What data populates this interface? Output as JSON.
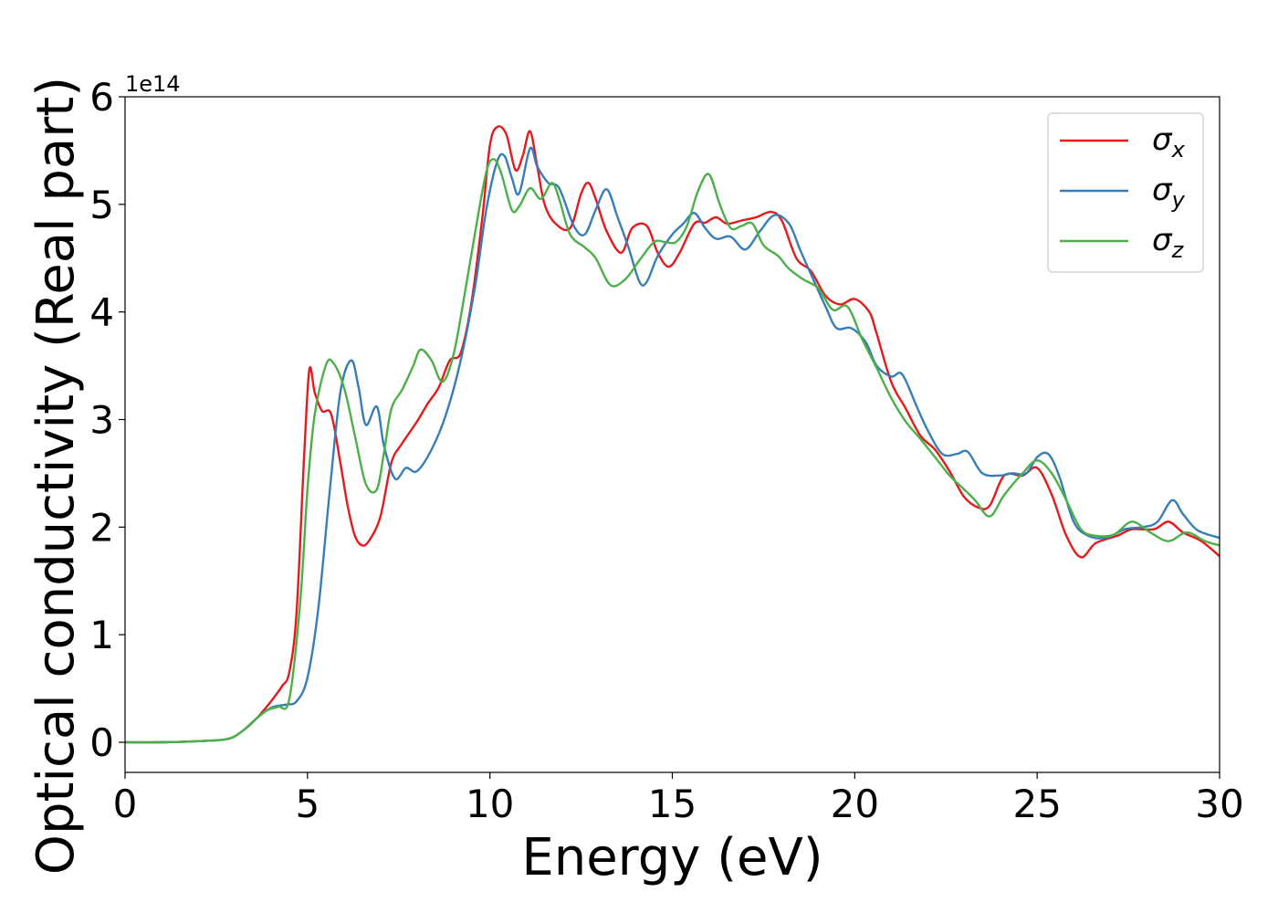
{
  "chart_data": {
    "type": "line",
    "title": "",
    "xlabel": "Energy (eV)",
    "ylabel": "Optical conductivity (Real part)",
    "y_offset_label": "1e14",
    "y_scale": 100000000000000.0,
    "xlim": [
      0,
      30
    ],
    "ylim": [
      -0.28,
      6.0
    ],
    "x_ticks": [
      0,
      5,
      10,
      15,
      20,
      25,
      30
    ],
    "y_ticks": [
      0,
      1,
      2,
      3,
      4,
      5,
      6
    ],
    "grid": false,
    "legend_position": "top-right",
    "series": [
      {
        "name": "σ",
        "subscript": "x",
        "color": "#e41a1c",
        "points": [
          [
            0,
            0
          ],
          [
            1,
            0
          ],
          [
            2,
            0.01
          ],
          [
            2.8,
            0.03
          ],
          [
            3.2,
            0.1
          ],
          [
            3.6,
            0.22
          ],
          [
            4.0,
            0.38
          ],
          [
            4.3,
            0.52
          ],
          [
            4.5,
            0.65
          ],
          [
            4.7,
            1.2
          ],
          [
            4.9,
            2.6
          ],
          [
            5.05,
            3.46
          ],
          [
            5.2,
            3.25
          ],
          [
            5.4,
            3.08
          ],
          [
            5.65,
            3.05
          ],
          [
            5.9,
            2.6
          ],
          [
            6.1,
            2.2
          ],
          [
            6.3,
            1.92
          ],
          [
            6.5,
            1.83
          ],
          [
            6.7,
            1.88
          ],
          [
            7.0,
            2.1
          ],
          [
            7.3,
            2.6
          ],
          [
            7.6,
            2.78
          ],
          [
            8.0,
            2.98
          ],
          [
            8.3,
            3.15
          ],
          [
            8.6,
            3.3
          ],
          [
            8.9,
            3.55
          ],
          [
            9.2,
            3.62
          ],
          [
            9.5,
            4.1
          ],
          [
            9.8,
            4.9
          ],
          [
            10.0,
            5.55
          ],
          [
            10.2,
            5.72
          ],
          [
            10.45,
            5.65
          ],
          [
            10.7,
            5.32
          ],
          [
            10.9,
            5.45
          ],
          [
            11.1,
            5.68
          ],
          [
            11.3,
            5.35
          ],
          [
            11.5,
            5.0
          ],
          [
            11.8,
            4.82
          ],
          [
            12.2,
            4.78
          ],
          [
            12.5,
            5.1
          ],
          [
            12.7,
            5.2
          ],
          [
            12.9,
            5.05
          ],
          [
            13.2,
            4.75
          ],
          [
            13.6,
            4.55
          ],
          [
            13.9,
            4.78
          ],
          [
            14.3,
            4.8
          ],
          [
            14.6,
            4.55
          ],
          [
            14.9,
            4.42
          ],
          [
            15.2,
            4.55
          ],
          [
            15.6,
            4.82
          ],
          [
            15.9,
            4.83
          ],
          [
            16.2,
            4.88
          ],
          [
            16.5,
            4.82
          ],
          [
            16.9,
            4.85
          ],
          [
            17.3,
            4.88
          ],
          [
            17.7,
            4.93
          ],
          [
            18.0,
            4.85
          ],
          [
            18.4,
            4.5
          ],
          [
            18.8,
            4.38
          ],
          [
            19.2,
            4.15
          ],
          [
            19.6,
            4.07
          ],
          [
            20.0,
            4.12
          ],
          [
            20.4,
            4.0
          ],
          [
            20.6,
            3.8
          ],
          [
            21.0,
            3.35
          ],
          [
            21.4,
            3.1
          ],
          [
            21.8,
            2.85
          ],
          [
            22.2,
            2.72
          ],
          [
            22.6,
            2.52
          ],
          [
            23.0,
            2.28
          ],
          [
            23.4,
            2.18
          ],
          [
            23.7,
            2.2
          ],
          [
            24.1,
            2.48
          ],
          [
            24.6,
            2.48
          ],
          [
            25.0,
            2.55
          ],
          [
            25.4,
            2.3
          ],
          [
            25.8,
            1.92
          ],
          [
            26.2,
            1.72
          ],
          [
            26.6,
            1.85
          ],
          [
            27.2,
            1.92
          ],
          [
            27.6,
            1.98
          ],
          [
            28.2,
            1.98
          ],
          [
            28.6,
            2.05
          ],
          [
            29.0,
            1.95
          ],
          [
            29.5,
            1.87
          ],
          [
            30,
            1.73
          ]
        ]
      },
      {
        "name": "σ",
        "subscript": "y",
        "color": "#377eb8",
        "points": [
          [
            0,
            0
          ],
          [
            1,
            0
          ],
          [
            2,
            0.01
          ],
          [
            2.8,
            0.03
          ],
          [
            3.2,
            0.1
          ],
          [
            3.6,
            0.22
          ],
          [
            4.0,
            0.32
          ],
          [
            4.4,
            0.35
          ],
          [
            4.7,
            0.38
          ],
          [
            5.0,
            0.6
          ],
          [
            5.3,
            1.25
          ],
          [
            5.6,
            2.3
          ],
          [
            5.9,
            3.25
          ],
          [
            6.2,
            3.55
          ],
          [
            6.4,
            3.3
          ],
          [
            6.6,
            2.95
          ],
          [
            6.9,
            3.12
          ],
          [
            7.1,
            2.75
          ],
          [
            7.4,
            2.45
          ],
          [
            7.7,
            2.55
          ],
          [
            8.0,
            2.52
          ],
          [
            8.4,
            2.72
          ],
          [
            8.8,
            3.05
          ],
          [
            9.2,
            3.55
          ],
          [
            9.6,
            4.25
          ],
          [
            9.9,
            4.95
          ],
          [
            10.2,
            5.4
          ],
          [
            10.4,
            5.45
          ],
          [
            10.6,
            5.25
          ],
          [
            10.8,
            5.1
          ],
          [
            11.1,
            5.52
          ],
          [
            11.3,
            5.35
          ],
          [
            11.6,
            5.2
          ],
          [
            11.9,
            5.15
          ],
          [
            12.3,
            4.8
          ],
          [
            12.6,
            4.72
          ],
          [
            12.9,
            4.95
          ],
          [
            13.2,
            5.14
          ],
          [
            13.5,
            4.88
          ],
          [
            13.8,
            4.6
          ],
          [
            14.1,
            4.28
          ],
          [
            14.3,
            4.28
          ],
          [
            14.6,
            4.52
          ],
          [
            15.0,
            4.72
          ],
          [
            15.3,
            4.82
          ],
          [
            15.6,
            4.92
          ],
          [
            15.9,
            4.78
          ],
          [
            16.2,
            4.68
          ],
          [
            16.6,
            4.7
          ],
          [
            17.0,
            4.58
          ],
          [
            17.4,
            4.75
          ],
          [
            17.8,
            4.9
          ],
          [
            18.2,
            4.82
          ],
          [
            18.5,
            4.58
          ],
          [
            18.8,
            4.35
          ],
          [
            19.2,
            4.05
          ],
          [
            19.5,
            3.85
          ],
          [
            19.9,
            3.85
          ],
          [
            20.3,
            3.72
          ],
          [
            20.6,
            3.5
          ],
          [
            21.0,
            3.4
          ],
          [
            21.3,
            3.42
          ],
          [
            21.7,
            3.12
          ],
          [
            22.0,
            2.9
          ],
          [
            22.4,
            2.68
          ],
          [
            22.8,
            2.68
          ],
          [
            23.1,
            2.7
          ],
          [
            23.5,
            2.5
          ],
          [
            24.0,
            2.48
          ],
          [
            24.3,
            2.5
          ],
          [
            24.7,
            2.5
          ],
          [
            25.0,
            2.65
          ],
          [
            25.3,
            2.68
          ],
          [
            25.6,
            2.48
          ],
          [
            26.0,
            2.05
          ],
          [
            26.4,
            1.92
          ],
          [
            26.9,
            1.9
          ],
          [
            27.4,
            1.98
          ],
          [
            27.9,
            2.0
          ],
          [
            28.3,
            2.05
          ],
          [
            28.7,
            2.25
          ],
          [
            29.0,
            2.12
          ],
          [
            29.4,
            1.97
          ],
          [
            30,
            1.9
          ]
        ]
      },
      {
        "name": "σ",
        "subscript": "z",
        "color": "#4daf4a",
        "points": [
          [
            0,
            0
          ],
          [
            1,
            0
          ],
          [
            2,
            0.01
          ],
          [
            2.8,
            0.03
          ],
          [
            3.2,
            0.1
          ],
          [
            3.6,
            0.22
          ],
          [
            3.9,
            0.3
          ],
          [
            4.2,
            0.33
          ],
          [
            4.5,
            0.4
          ],
          [
            4.8,
            1.3
          ],
          [
            5.0,
            2.35
          ],
          [
            5.2,
            3.05
          ],
          [
            5.5,
            3.5
          ],
          [
            5.7,
            3.53
          ],
          [
            6.0,
            3.3
          ],
          [
            6.3,
            2.85
          ],
          [
            6.6,
            2.4
          ],
          [
            6.9,
            2.35
          ],
          [
            7.1,
            2.7
          ],
          [
            7.3,
            3.1
          ],
          [
            7.6,
            3.28
          ],
          [
            7.9,
            3.5
          ],
          [
            8.1,
            3.65
          ],
          [
            8.4,
            3.55
          ],
          [
            8.7,
            3.35
          ],
          [
            9.0,
            3.6
          ],
          [
            9.3,
            4.15
          ],
          [
            9.6,
            4.75
          ],
          [
            9.9,
            5.3
          ],
          [
            10.1,
            5.42
          ],
          [
            10.3,
            5.3
          ],
          [
            10.6,
            4.95
          ],
          [
            10.8,
            4.98
          ],
          [
            11.1,
            5.15
          ],
          [
            11.4,
            5.05
          ],
          [
            11.7,
            5.2
          ],
          [
            11.9,
            5.05
          ],
          [
            12.2,
            4.72
          ],
          [
            12.6,
            4.6
          ],
          [
            12.9,
            4.5
          ],
          [
            13.3,
            4.25
          ],
          [
            13.7,
            4.3
          ],
          [
            14.1,
            4.48
          ],
          [
            14.5,
            4.65
          ],
          [
            14.8,
            4.65
          ],
          [
            15.1,
            4.65
          ],
          [
            15.4,
            4.8
          ],
          [
            15.7,
            5.12
          ],
          [
            16.0,
            5.28
          ],
          [
            16.3,
            5.0
          ],
          [
            16.6,
            4.78
          ],
          [
            16.9,
            4.8
          ],
          [
            17.2,
            4.82
          ],
          [
            17.5,
            4.62
          ],
          [
            17.9,
            4.52
          ],
          [
            18.2,
            4.4
          ],
          [
            18.6,
            4.3
          ],
          [
            19.0,
            4.22
          ],
          [
            19.4,
            4.02
          ],
          [
            19.8,
            4.05
          ],
          [
            20.2,
            3.75
          ],
          [
            20.6,
            3.48
          ],
          [
            21.0,
            3.2
          ],
          [
            21.4,
            2.98
          ],
          [
            21.8,
            2.82
          ],
          [
            22.2,
            2.65
          ],
          [
            22.6,
            2.48
          ],
          [
            23.0,
            2.35
          ],
          [
            23.3,
            2.25
          ],
          [
            23.7,
            2.1
          ],
          [
            24.1,
            2.3
          ],
          [
            24.6,
            2.5
          ],
          [
            25.0,
            2.62
          ],
          [
            25.4,
            2.5
          ],
          [
            25.8,
            2.25
          ],
          [
            26.2,
            1.98
          ],
          [
            26.6,
            1.92
          ],
          [
            27.1,
            1.93
          ],
          [
            27.6,
            2.05
          ],
          [
            28.1,
            1.95
          ],
          [
            28.6,
            1.87
          ],
          [
            29.1,
            1.95
          ],
          [
            29.6,
            1.87
          ],
          [
            30,
            1.83
          ]
        ]
      }
    ]
  }
}
